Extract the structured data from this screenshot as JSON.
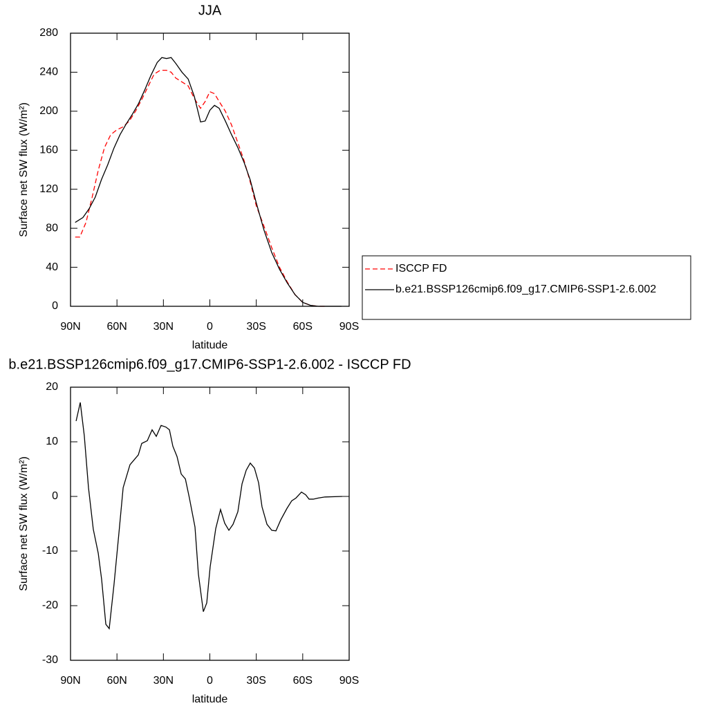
{
  "chart_data": [
    {
      "type": "line",
      "title": "JJA",
      "x_label": "latitude",
      "y_label": "Surface net SW flux (W/m²)",
      "xlim": [
        90,
        -90
      ],
      "ylim": [
        0,
        280
      ],
      "xticks": [
        {
          "value": 90,
          "label": "90N"
        },
        {
          "value": 60,
          "label": "60N"
        },
        {
          "value": 30,
          "label": "30N"
        },
        0,
        {
          "value": -30,
          "label": "30S"
        },
        {
          "value": -60,
          "label": "60S"
        },
        {
          "value": -90,
          "label": "90S"
        }
      ],
      "yticks": [
        0,
        40,
        80,
        120,
        160,
        200,
        240,
        280
      ],
      "legend": "right",
      "series": [
        {
          "name": "ISCCP FD",
          "color": "#ff0000",
          "dashed": true,
          "x": [
            87,
            84,
            80,
            76,
            72,
            68,
            64,
            60,
            56,
            52,
            48,
            44,
            40,
            36,
            32,
            28,
            25,
            22,
            18,
            14,
            10,
            6,
            3,
            0,
            -3,
            -6,
            -10,
            -14,
            -18,
            -22,
            -26,
            -30,
            -35,
            -40,
            -45,
            -50,
            -55,
            -60,
            -65,
            -70,
            -75
          ],
          "values": [
            71,
            71,
            86,
            112,
            140,
            163,
            176,
            181,
            184,
            190,
            200,
            212,
            225,
            238,
            242,
            242,
            240,
            234,
            230,
            226,
            213,
            203,
            210,
            220,
            218,
            210,
            200,
            186,
            168,
            150,
            128,
            103,
            82,
            60,
            40,
            25,
            12,
            4,
            1,
            0,
            0
          ]
        },
        {
          "name": "b.e21.BSSP126cmip6.f09_g17.CMIP6-SSP1-2.6.002",
          "color": "#000000",
          "dashed": false,
          "x": [
            87,
            82,
            78,
            74,
            70,
            66,
            62,
            58,
            54,
            50,
            46,
            42,
            38,
            34,
            31,
            28,
            25,
            22,
            18,
            14,
            10,
            6,
            3,
            0,
            -3,
            -6,
            -10,
            -14,
            -18,
            -22,
            -26,
            -30,
            -35,
            -40,
            -45,
            -50,
            -55,
            -60,
            -65,
            -70,
            -75,
            -80,
            -85
          ],
          "values": [
            86,
            91,
            100,
            112,
            130,
            145,
            162,
            176,
            187,
            197,
            208,
            222,
            237,
            250,
            255,
            254,
            255,
            249,
            240,
            233,
            215,
            189,
            190,
            201,
            206,
            203,
            190,
            176,
            163,
            148,
            130,
            106,
            78,
            55,
            38,
            24,
            12,
            4,
            1,
            0,
            0,
            0,
            0
          ]
        }
      ]
    },
    {
      "type": "line",
      "title": "b.e21.BSSP126cmip6.f09_g17.CMIP6-SSP1-2.6.002 - ISCCP FD",
      "x_label": "latitude",
      "y_label": "Surface net SW flux (W/m²)",
      "xlim": [
        90,
        -90
      ],
      "ylim": [
        -30,
        20
      ],
      "xticks": [
        {
          "value": 90,
          "label": "90N"
        },
        {
          "value": 60,
          "label": "60N"
        },
        {
          "value": 30,
          "label": "30N"
        },
        0,
        {
          "value": -30,
          "label": "30S"
        },
        {
          "value": -60,
          "label": "60S"
        },
        {
          "value": -90,
          "label": "90S"
        }
      ],
      "yticks": [
        -30,
        -20,
        -10,
        0,
        10,
        20
      ],
      "series": [
        {
          "color": "#000000",
          "dashed": false,
          "x": [
            86.4,
            83.7,
            81.1,
            78.4,
            75.3,
            72.1,
            69.9,
            67.2,
            65.0,
            61.9,
            58.7,
            56.0,
            51.6,
            46.2,
            44.0,
            40.4,
            37.3,
            34.6,
            31.5,
            28.4,
            26.1,
            23.9,
            21.2,
            18.5,
            15.8,
            13.2,
            9.6,
            7.4,
            4.2,
            2.0,
            -0.2,
            -3.8,
            -6.9,
            -9.6,
            -12.3,
            -15.0,
            -18.1,
            -20.8,
            -23.5,
            -26.1,
            -28.8,
            -31.5,
            -33.7,
            -36.9,
            -40.0,
            -42.7,
            -45.8,
            -49.8,
            -52.9,
            -55.6,
            -59.2,
            -61.9,
            -64.1,
            -66.8,
            -69.9,
            -74.4,
            -85.5
          ],
          "values": [
            13.8,
            17.2,
            11.1,
            1.6,
            -6,
            -10.4,
            -15.2,
            -23.4,
            -24.2,
            -16.1,
            -6.6,
            1.6,
            5.8,
            7.6,
            9.7,
            10.2,
            12.2,
            11,
            13,
            12.7,
            12.2,
            9.2,
            7.3,
            4.1,
            3.2,
            -0.3,
            -5.6,
            -14.2,
            -21.1,
            -19.5,
            -12.9,
            -5.9,
            -2.4,
            -4.9,
            -6.2,
            -5.1,
            -2.8,
            2.3,
            4.8,
            6.1,
            5.2,
            2.5,
            -1.9,
            -5.1,
            -6.2,
            -6.3,
            -4.3,
            -2.2,
            -0.8,
            -0.3,
            0.8,
            0.3,
            -0.5,
            -0.5,
            -0.3,
            -0.1,
            0
          ]
        }
      ]
    }
  ]
}
